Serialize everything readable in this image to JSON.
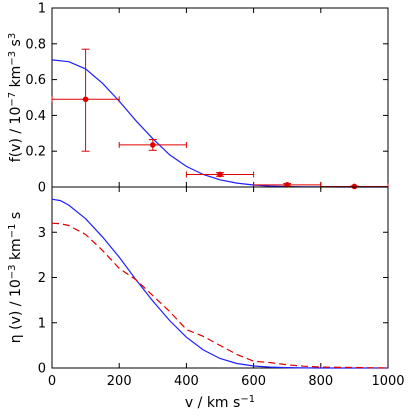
{
  "chart_data": [
    {
      "type": "scatter",
      "title": "",
      "xlabel": "",
      "ylabel_parts": {
        "main": "f(v) / 10",
        "exp1": "−7",
        "mid": " km",
        "exp2": "−3",
        "mid2": " s",
        "exp3": "3"
      },
      "xlim": [
        0,
        1000
      ],
      "ylim": [
        0,
        1
      ],
      "xticks": [],
      "yticks": [
        0,
        0.2,
        0.4,
        0.6,
        0.8,
        1
      ],
      "ytick_labels": [
        "0",
        "0.2",
        "0.4",
        "0.6",
        "0.8",
        "1"
      ],
      "grid": false,
      "legend": "none",
      "series": [
        {
          "kind": "curve",
          "color": "#1f1fff",
          "x": [
            0,
            50,
            100,
            150,
            200,
            250,
            300,
            350,
            400,
            450,
            500,
            550,
            600,
            650,
            700,
            750,
            800,
            850,
            900,
            950,
            1000
          ],
          "y": [
            0.71,
            0.7,
            0.66,
            0.58,
            0.48,
            0.37,
            0.27,
            0.18,
            0.115,
            0.07,
            0.04,
            0.022,
            0.011,
            0.005,
            0.002,
            0.001,
            0.0005,
            0.0002,
            0.0001,
            0.0,
            0.0
          ]
        },
        {
          "kind": "points",
          "color": "#e00000",
          "points": [
            {
              "x": 100,
              "y": 0.49,
              "xerr": [
                0,
                200
              ],
              "yerr": [
                0.2,
                0.77
              ]
            },
            {
              "x": 300,
              "y": 0.235,
              "xerr": [
                200,
                400
              ],
              "yerr": [
                0.205,
                0.265
              ]
            },
            {
              "x": 500,
              "y": 0.07,
              "xerr": [
                400,
                600
              ],
              "yerr": [
                0.06,
                0.08
              ]
            },
            {
              "x": 700,
              "y": 0.012,
              "xerr": [
                600,
                800
              ],
              "yerr": [
                0.005,
                0.019
              ]
            },
            {
              "x": 900,
              "y": 0.003,
              "xerr": [
                800,
                1000
              ],
              "yerr": [
                0.0,
                0.006
              ]
            }
          ]
        }
      ]
    },
    {
      "type": "line",
      "title": "",
      "xlabel_parts": {
        "main": "v / km s",
        "exp": "−1"
      },
      "ylabel_parts": {
        "main": "η (v) / 10",
        "exp1": "−3",
        "mid": " km",
        "exp2": "−1",
        "mid2": " s"
      },
      "xlim": [
        0,
        1000
      ],
      "ylim": [
        0,
        4
      ],
      "xticks": [
        0,
        200,
        400,
        600,
        800,
        1000
      ],
      "xtick_labels": [
        "0",
        "200",
        "400",
        "600",
        "800",
        "1000"
      ],
      "yticks": [
        0,
        1,
        2,
        3
      ],
      "ytick_labels": [
        "0",
        "1",
        "2",
        "3"
      ],
      "grid": false,
      "legend": "none",
      "series": [
        {
          "style": "solid",
          "color": "#1f1fff",
          "x": [
            0,
            25,
            50,
            100,
            150,
            200,
            250,
            300,
            350,
            400,
            450,
            500,
            550,
            600,
            650,
            700,
            750,
            800,
            900,
            1000
          ],
          "y": [
            3.73,
            3.7,
            3.6,
            3.3,
            2.9,
            2.45,
            1.95,
            1.48,
            1.05,
            0.68,
            0.4,
            0.21,
            0.1,
            0.045,
            0.02,
            0.008,
            0.003,
            0.001,
            0.0,
            0.0
          ]
        },
        {
          "style": "dashed",
          "color": "#e00000",
          "x": [
            0,
            25,
            50,
            100,
            150,
            200,
            250,
            300,
            350,
            400,
            450,
            500,
            550,
            600,
            650,
            700,
            750,
            800,
            900,
            1000
          ],
          "y": [
            3.2,
            3.19,
            3.15,
            2.95,
            2.6,
            2.2,
            1.95,
            1.6,
            1.25,
            0.85,
            0.7,
            0.5,
            0.3,
            0.15,
            0.12,
            0.07,
            0.04,
            0.02,
            0.01,
            0.0
          ]
        }
      ]
    }
  ]
}
